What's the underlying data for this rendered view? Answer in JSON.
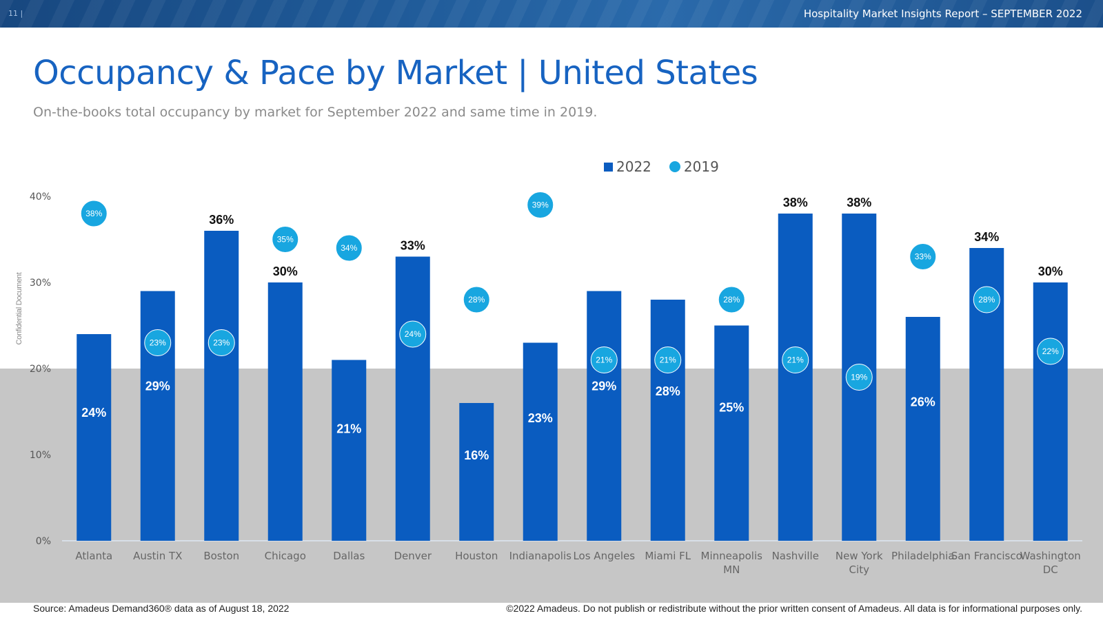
{
  "header": {
    "page_number": "11 |",
    "report_title": "Hospitality Market Insights Report – SEPTEMBER 2022"
  },
  "title": "Occupancy & Pace by Market | United States",
  "subtitle": "On-the-books total occupancy by market for September 2022 and same time in 2019.",
  "side_label": "Confidential Document",
  "brand": "amadeus",
  "legend": {
    "series_2022": "2022",
    "series_2019": "2019"
  },
  "colors": {
    "bar_2022": "#0a5cc0",
    "marker_2019": "#18a6e0",
    "title": "#1763c1",
    "band": "#c6c6c6",
    "header": "#1f5a98"
  },
  "footer": {
    "source": "Source: Amadeus Demand360® data as of August 18, 2022",
    "copyright": "©2022 Amadeus. Do not publish or redistribute without the prior written consent of Amadeus. All data is for informational purposes only."
  },
  "chart_data": {
    "type": "bar",
    "categories": [
      [
        "Atlanta"
      ],
      [
        "Austin TX"
      ],
      [
        "Boston"
      ],
      [
        "Chicago"
      ],
      [
        "Dallas"
      ],
      [
        "Denver"
      ],
      [
        "Houston"
      ],
      [
        "Indianapolis"
      ],
      [
        "Los Angeles"
      ],
      [
        "Miami FL"
      ],
      [
        "Minneapolis",
        "MN"
      ],
      [
        "Nashville"
      ],
      [
        "New York",
        "City"
      ],
      [
        "Philadelphia"
      ],
      [
        "San Francisco"
      ],
      [
        "Washington",
        "DC"
      ]
    ],
    "series": [
      {
        "name": "2022",
        "type": "bar",
        "values": [
          24,
          29,
          36,
          30,
          21,
          33,
          16,
          23,
          29,
          28,
          25,
          38,
          38,
          26,
          34,
          30
        ],
        "labels": [
          "24%",
          "29%",
          "36%",
          "30%",
          "21%",
          "33%",
          "16%",
          "23%",
          "29%",
          "28%",
          "25%",
          "38%",
          "38%",
          "26%",
          "34%",
          "30%"
        ]
      },
      {
        "name": "2019",
        "type": "marker",
        "values": [
          38,
          23,
          23,
          35,
          34,
          24,
          28,
          39,
          21,
          21,
          28,
          21,
          19,
          33,
          28,
          22
        ],
        "labels": [
          "38%",
          "23%",
          "23%",
          "35%",
          "34%",
          "24%",
          "28%",
          "39%",
          "21%",
          "21%",
          "28%",
          "21%",
          "19%",
          "33%",
          "28%",
          "22%"
        ]
      }
    ],
    "yticks": [
      {
        "value": 0,
        "label": "0%"
      },
      {
        "value": 10,
        "label": "10%"
      },
      {
        "value": 20,
        "label": "20%"
      },
      {
        "value": 30,
        "label": "30%"
      },
      {
        "value": 40,
        "label": "40%"
      }
    ],
    "ylim": [
      0,
      40
    ],
    "background_band": [
      0,
      20
    ],
    "bar_labels_inside_when_below": 30,
    "legend_position": "top-center",
    "grid": false
  }
}
